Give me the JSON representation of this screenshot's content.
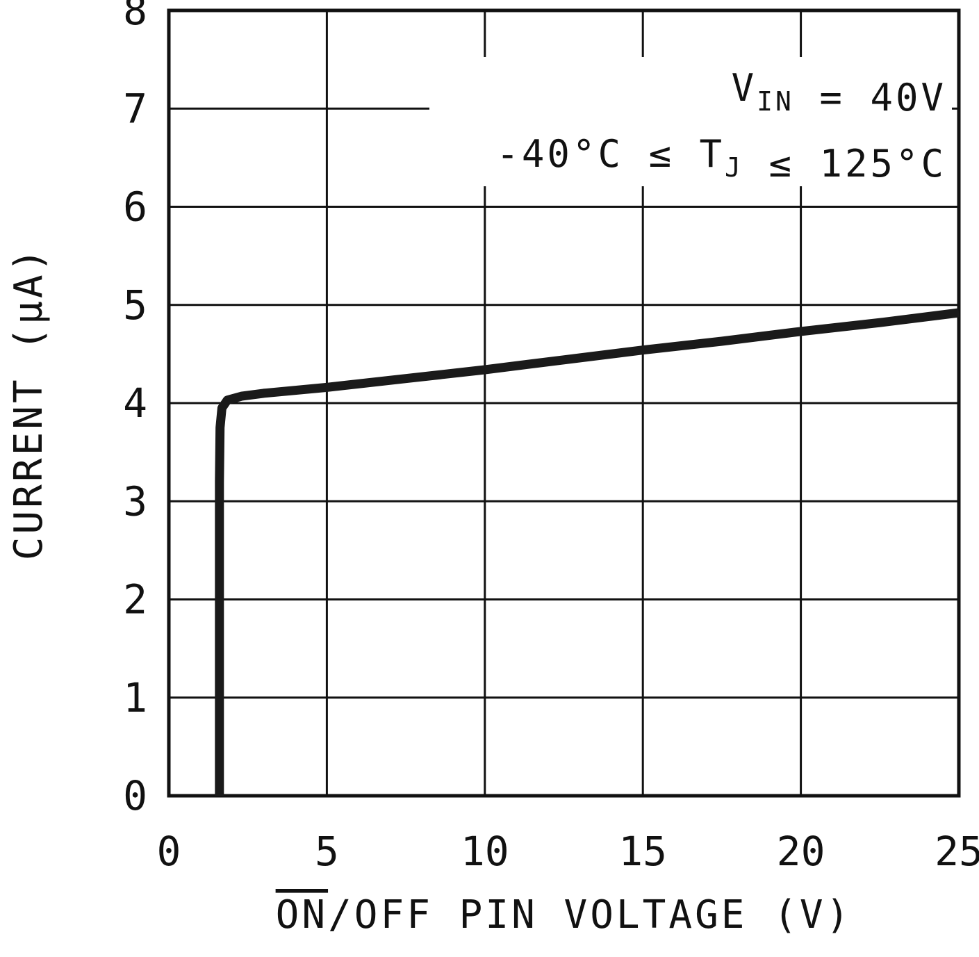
{
  "chart_data": {
    "type": "line",
    "title": "",
    "xlabel_segments": [
      {
        "t": "ON",
        "overline": true
      },
      {
        "t": "/OFF PIN VOLTAGE (V)",
        "overline": false
      }
    ],
    "ylabel": "CURRENT (µA)",
    "xlim": [
      0,
      25
    ],
    "ylim": [
      0,
      8
    ],
    "xticks": [
      0,
      5,
      10,
      15,
      20,
      25
    ],
    "yticks": [
      0,
      1,
      2,
      3,
      4,
      5,
      6,
      7,
      8
    ],
    "grid": true,
    "legend_position": "none",
    "annotations": [
      {
        "name": "vin-condition",
        "segments": [
          {
            "t": "V",
            "sub": false
          },
          {
            "t": "IN",
            "sub": true
          },
          {
            "t": " = 40V",
            "sub": false
          }
        ]
      },
      {
        "name": "temperature-condition",
        "segments": [
          {
            "t": "-40°C ≤ T",
            "sub": false
          },
          {
            "t": "J",
            "sub": true
          },
          {
            "t": " ≤ 125°C",
            "sub": false
          }
        ]
      }
    ],
    "series": [
      {
        "name": "on-off-pin-current",
        "color": "#1a1a1a",
        "points": [
          [
            1.6,
            0.0
          ],
          [
            1.6,
            3.2
          ],
          [
            1.62,
            3.75
          ],
          [
            1.68,
            3.95
          ],
          [
            1.85,
            4.03
          ],
          [
            2.3,
            4.07
          ],
          [
            3.0,
            4.1
          ],
          [
            5.0,
            4.16
          ],
          [
            7.5,
            4.25
          ],
          [
            10.0,
            4.34
          ],
          [
            12.5,
            4.44
          ],
          [
            15.0,
            4.54
          ],
          [
            17.5,
            4.63
          ],
          [
            20.0,
            4.73
          ],
          [
            22.5,
            4.82
          ],
          [
            25.0,
            4.92
          ]
        ]
      }
    ],
    "colors": {
      "grid": "#111111",
      "frame": "#111111",
      "text": "#111111",
      "background": "#ffffff"
    }
  }
}
